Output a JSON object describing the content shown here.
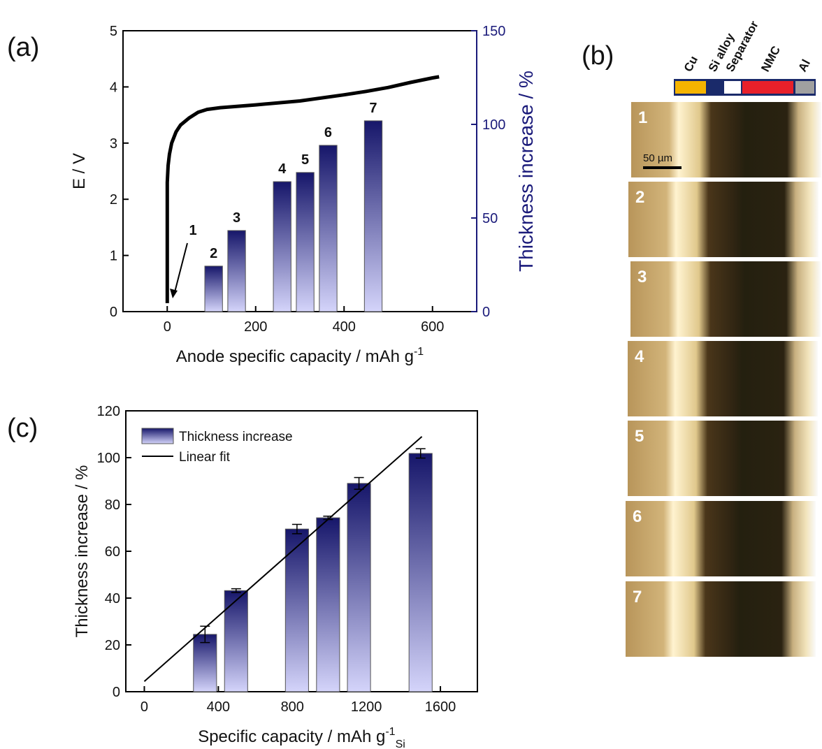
{
  "chart_data": [
    {
      "type": "line",
      "panel_label": "(a)",
      "x": [
        0,
        0,
        0,
        2,
        5,
        10,
        20,
        30,
        50,
        70,
        90,
        120,
        200,
        300,
        400,
        450,
        500,
        550,
        600,
        615
      ],
      "values": [
        0.15,
        1.5,
        2.3,
        2.6,
        2.8,
        3.0,
        3.2,
        3.32,
        3.45,
        3.55,
        3.6,
        3.63,
        3.68,
        3.75,
        3.86,
        3.92,
        3.99,
        4.08,
        4.16,
        4.18
      ],
      "color": "#000000",
      "xlabel": "Anode specific capacity / mAh g",
      "xlabel_sup": "-1",
      "ylabel": "E / V",
      "y2label": "Thickness increase / %",
      "y2color": "#1a1a7a",
      "xlim": [
        -100,
        700
      ],
      "xticks": [
        0,
        200,
        400,
        600
      ],
      "ylim": [
        0,
        5
      ],
      "yticks": [
        0,
        1,
        2,
        3,
        4,
        5
      ],
      "y2lim": [
        0,
        150
      ],
      "y2ticks": [
        0,
        50,
        100,
        150
      ],
      "bars": {
        "axis": "y2",
        "x": [
          105,
          157,
          260,
          312,
          364,
          466
        ],
        "values": [
          24.3,
          43.3,
          69.4,
          74.3,
          88.8,
          101.9
        ],
        "labels": [
          "2",
          "3",
          "4",
          "5",
          "6",
          "7"
        ]
      },
      "annotation": "1"
    },
    {
      "type": "bar",
      "panel_label": "(c)",
      "x": [
        328,
        496,
        825,
        993,
        1160,
        1493
      ],
      "series": [
        {
          "name": "Thickness increase",
          "values": [
            24.5,
            43.2,
            69.5,
            74.3,
            89.0,
            101.8
          ],
          "errors": [
            3.5,
            0.8,
            2.0,
            0.7,
            2.5,
            2.0
          ]
        }
      ],
      "fit": {
        "name": "Linear fit",
        "x": [
          0,
          1500
        ],
        "y": [
          4.4,
          109
        ]
      },
      "xlabel": "Specific capacity / mAh g",
      "xlabel_sup": "-1",
      "xlabel_sub": "Si",
      "ylabel": "Thickness increase / %",
      "xlim": [
        -100,
        1800
      ],
      "xticks": [
        0,
        400,
        800,
        1200,
        1600
      ],
      "ylim": [
        0,
        120
      ],
      "yticks": [
        0,
        20,
        40,
        60,
        80,
        100,
        120
      ]
    }
  ],
  "panel_b": {
    "panel_label": "(b)",
    "layers": [
      {
        "name": "Cu",
        "color": "#f5b400"
      },
      {
        "name": "Si alloy",
        "color": "#1a2a6a"
      },
      {
        "name": "Separator",
        "color": "#ffffff"
      },
      {
        "name": "NMC",
        "color": "#e8202a"
      },
      {
        "name": "Al",
        "color": "#a0a0a0"
      }
    ],
    "images": [
      "1",
      "2",
      "3",
      "4",
      "5",
      "6",
      "7"
    ],
    "scale_bar": "50 µm"
  }
}
